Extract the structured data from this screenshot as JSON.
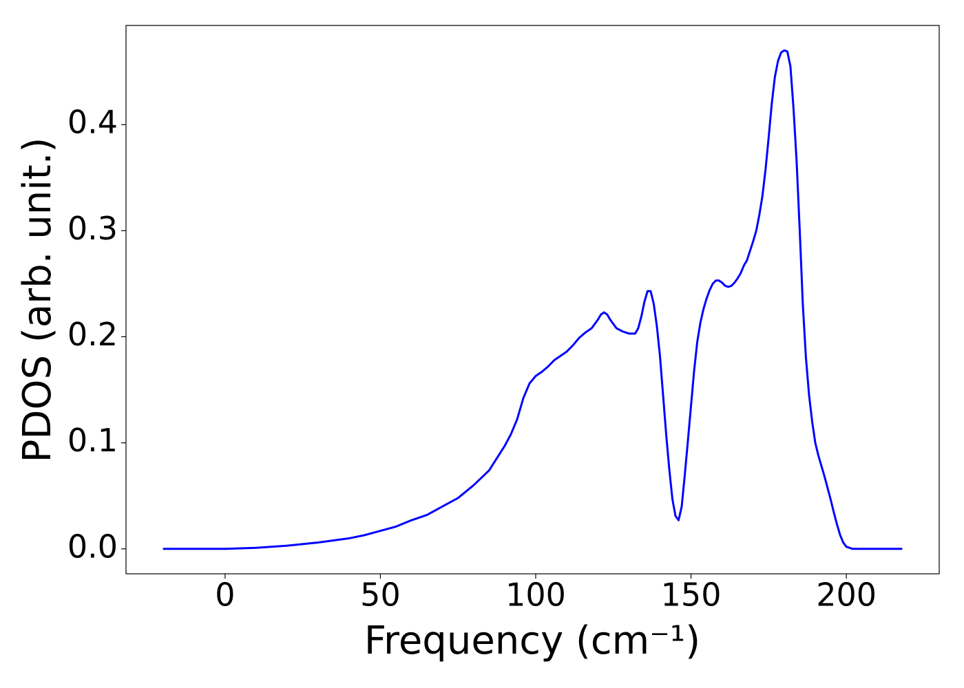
{
  "chart_data": {
    "type": "line",
    "xlabel": "Frequency (cm⁻¹)",
    "ylabel": "PDOS (arb. unit.)",
    "x": [
      -20,
      -10,
      0,
      10,
      20,
      30,
      40,
      45,
      50,
      55,
      60,
      65,
      70,
      75,
      80,
      85,
      90,
      92,
      94,
      96,
      98,
      100,
      102,
      104,
      106,
      108,
      110,
      112,
      114,
      116,
      118,
      120,
      121,
      122,
      123,
      124,
      126,
      128,
      130,
      131,
      132,
      133,
      134,
      135,
      136,
      137,
      138,
      139,
      140,
      141,
      142,
      143,
      144,
      145,
      146,
      147,
      148,
      149,
      150,
      151,
      152,
      153,
      154,
      155,
      156,
      157,
      158,
      159,
      160,
      161,
      162,
      163,
      164,
      165,
      166,
      167,
      168,
      169,
      170,
      171,
      172,
      173,
      174,
      175,
      176,
      177,
      178,
      179,
      180,
      181,
      182,
      183,
      184,
      185,
      186,
      187,
      188,
      189,
      190,
      191,
      192,
      193,
      194,
      195,
      196,
      197,
      198,
      199,
      200,
      201,
      202,
      205,
      210,
      218
    ],
    "series": [
      {
        "color": "#0000ff",
        "values": [
          0,
          0,
          0,
          0.001,
          0.003,
          0.006,
          0.01,
          0.013,
          0.017,
          0.021,
          0.027,
          0.032,
          0.04,
          0.048,
          0.06,
          0.074,
          0.097,
          0.108,
          0.122,
          0.142,
          0.156,
          0.163,
          0.167,
          0.172,
          0.178,
          0.182,
          0.186,
          0.192,
          0.199,
          0.204,
          0.208,
          0.216,
          0.221,
          0.223,
          0.221,
          0.216,
          0.208,
          0.205,
          0.203,
          0.203,
          0.203,
          0.208,
          0.219,
          0.233,
          0.243,
          0.243,
          0.231,
          0.21,
          0.182,
          0.145,
          0.108,
          0.075,
          0.047,
          0.031,
          0.027,
          0.04,
          0.07,
          0.102,
          0.135,
          0.168,
          0.195,
          0.213,
          0.226,
          0.236,
          0.244,
          0.25,
          0.253,
          0.253,
          0.251,
          0.248,
          0.247,
          0.248,
          0.251,
          0.255,
          0.26,
          0.267,
          0.272,
          0.281,
          0.29,
          0.3,
          0.315,
          0.333,
          0.358,
          0.388,
          0.42,
          0.445,
          0.46,
          0.468,
          0.47,
          0.469,
          0.455,
          0.415,
          0.365,
          0.3,
          0.23,
          0.18,
          0.145,
          0.12,
          0.1,
          0.088,
          0.078,
          0.068,
          0.057,
          0.046,
          0.034,
          0.023,
          0.013,
          0.006,
          0.002,
          0.001,
          0,
          0,
          0,
          0
        ]
      }
    ],
    "xlim": [
      -31.9,
      229.9
    ],
    "ylim": [
      -0.0235,
      0.4935
    ],
    "xticks": [
      0,
      50,
      100,
      150,
      200
    ],
    "yticks": [
      {
        "value": 0,
        "label": "0.0"
      },
      0.1,
      0.2,
      0.3,
      0.4
    ],
    "grid": false
  }
}
